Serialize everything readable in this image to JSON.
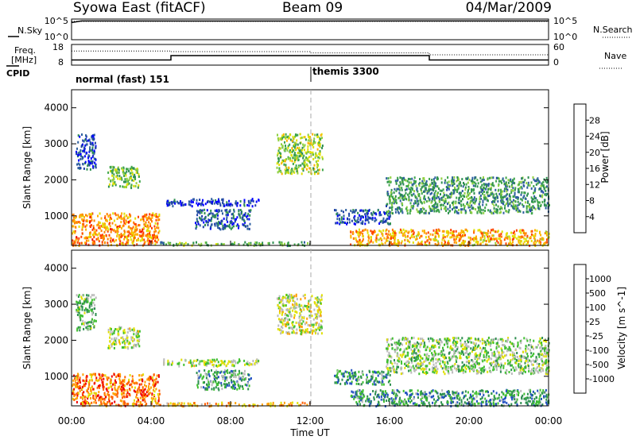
{
  "header": {
    "station": "Syowa East (fitACF)",
    "beam": "Beam 09",
    "date": "04/Mar/2009"
  },
  "noise_panel": {
    "left_label": "N.Sky",
    "right_label": "N.Search",
    "left_ticks": [
      "10^5",
      "10^0"
    ],
    "right_ticks": [
      "10^5",
      "10^0"
    ]
  },
  "freq_panel": {
    "left_label_1": "Freq.",
    "left_label_2": "[MHz]",
    "right_label": "Nave",
    "left_ticks": [
      "18",
      "8"
    ],
    "right_ticks": [
      "60",
      "0"
    ]
  },
  "cpid": {
    "label": "CPID",
    "programs": [
      {
        "name": "normal (fast) 151",
        "start_hour": 0
      },
      {
        "name": "themis 3300",
        "start_hour": 12
      }
    ]
  },
  "chart_data": [
    {
      "type": "line",
      "title": "N.Sky / N.Search",
      "yscale": "log",
      "ylim": [
        1,
        100000
      ],
      "x_unit": "hours UT",
      "series": [
        {
          "name": "N.Sky",
          "style": "solid",
          "points": [
            [
              0,
              20000
            ],
            [
              0.5,
              50000
            ],
            [
              12,
              48000
            ],
            [
              17,
              52000
            ],
            [
              24,
              50000
            ]
          ]
        },
        {
          "name": "N.Search",
          "style": "dotted",
          "points": [
            [
              0,
              40000
            ],
            [
              24,
              40000
            ]
          ]
        }
      ]
    },
    {
      "type": "line",
      "title": "Freq. / Nave",
      "ylim": [
        8,
        18
      ],
      "y2lim": [
        0,
        60
      ],
      "x_unit": "hours UT",
      "series": [
        {
          "name": "Freq.",
          "unit": "MHz",
          "style": "solid",
          "points": [
            [
              0,
              10.3
            ],
            [
              5,
              10.3
            ],
            [
              5,
              12.6
            ],
            [
              18,
              12.6
            ],
            [
              18,
              10.3
            ],
            [
              24,
              10.3
            ]
          ]
        },
        {
          "name": "Nave",
          "style": "dotted",
          "points": [
            [
              0,
              42
            ],
            [
              5,
              42
            ],
            [
              5,
              40
            ],
            [
              12,
              40
            ],
            [
              12,
              36
            ],
            [
              18,
              36
            ],
            [
              18,
              30
            ],
            [
              24,
              30
            ]
          ]
        }
      ]
    },
    {
      "type": "heatmap",
      "xlabel": "Time UT",
      "ylabel": "Slant Range [km]",
      "xlim": [
        0,
        24
      ],
      "ylim": [
        180,
        4500
      ],
      "xticks": [
        "00:00",
        "04:00",
        "08:00",
        "12:00",
        "16:00",
        "20:00",
        "00:00"
      ],
      "yticks": [
        1000,
        2000,
        3000,
        4000
      ],
      "colorbar": {
        "label": "Power [dB]",
        "ticks": [
          "4",
          "8",
          "12",
          "16",
          "20",
          "24",
          "28"
        ],
        "colors": [
          "#0000ff",
          "#1f3fa8",
          "#2e5fa0",
          "#2e8f50",
          "#3fa64a",
          "#8fd040",
          "#e0e000",
          "#ffb000",
          "#ff8000",
          "#ff4000",
          "#ee0000"
        ]
      },
      "regions": [
        {
          "t0": 0,
          "t1": 4.4,
          "r0": 200,
          "r1": 1100,
          "level": 0.75
        },
        {
          "t0": 0.2,
          "t1": 1.2,
          "r0": 2300,
          "r1": 3300,
          "level": 0.15
        },
        {
          "t0": 1.8,
          "t1": 3.4,
          "r0": 1800,
          "r1": 2400,
          "level": 0.45
        },
        {
          "t0": 4.6,
          "t1": 9.4,
          "r0": 1300,
          "r1": 1500,
          "level": 0.12
        },
        {
          "t0": 6.2,
          "t1": 9.0,
          "r0": 650,
          "r1": 1200,
          "level": 0.2
        },
        {
          "t0": 10.3,
          "t1": 12.6,
          "r0": 2200,
          "r1": 3300,
          "level": 0.5
        },
        {
          "t0": 13.2,
          "t1": 16.0,
          "r0": 800,
          "r1": 1200,
          "level": 0.15
        },
        {
          "t0": 15.8,
          "t1": 24.0,
          "r0": 1100,
          "r1": 2100,
          "level": 0.35
        },
        {
          "t0": 14.0,
          "t1": 24.0,
          "r0": 200,
          "r1": 650,
          "level": 0.7
        },
        {
          "t0": 4.4,
          "t1": 12.0,
          "r0": 200,
          "r1": 300,
          "level": 0.4
        }
      ]
    },
    {
      "type": "heatmap",
      "xlabel": "Time UT",
      "ylabel": "Slant Range [km]",
      "xlim": [
        0,
        24
      ],
      "ylim": [
        180,
        4500
      ],
      "xticks": [
        "00:00",
        "04:00",
        "08:00",
        "12:00",
        "16:00",
        "20:00",
        "00:00"
      ],
      "yticks": [
        1000,
        2000,
        3000,
        4000
      ],
      "colorbar": {
        "label": "Velocity [m s^-1]",
        "ticks": [
          "1000",
          "500",
          "100",
          "25",
          "-25",
          "-100",
          "-500",
          "-1000"
        ],
        "colors": [
          "#1010ff",
          "#2050c0",
          "#2e8f50",
          "#40c030",
          "#bbbbbb",
          "#e0e000",
          "#ffa000",
          "#ff6000",
          "#ee0000"
        ]
      },
      "regions": [
        {
          "t0": 0,
          "t1": 4.4,
          "r0": 200,
          "r1": 1100,
          "level": 0.8
        },
        {
          "t0": 0.2,
          "t1": 1.2,
          "r0": 2300,
          "r1": 3300,
          "level": 0.4
        },
        {
          "t0": 1.8,
          "t1": 3.4,
          "r0": 1800,
          "r1": 2400,
          "level": 0.5
        },
        {
          "t0": 4.6,
          "t1": 9.4,
          "r0": 1300,
          "r1": 1500,
          "level": 0.5
        },
        {
          "t0": 6.2,
          "t1": 9.0,
          "r0": 650,
          "r1": 1200,
          "level": 0.35
        },
        {
          "t0": 10.3,
          "t1": 12.6,
          "r0": 2200,
          "r1": 3300,
          "level": 0.55
        },
        {
          "t0": 13.2,
          "t1": 16.0,
          "r0": 800,
          "r1": 1200,
          "level": 0.3
        },
        {
          "t0": 15.8,
          "t1": 24.0,
          "r0": 1100,
          "r1": 2100,
          "level": 0.45
        },
        {
          "t0": 14.0,
          "t1": 24.0,
          "r0": 200,
          "r1": 650,
          "level": 0.3
        },
        {
          "t0": 4.4,
          "t1": 12.0,
          "r0": 200,
          "r1": 300,
          "level": 0.7
        }
      ]
    }
  ]
}
